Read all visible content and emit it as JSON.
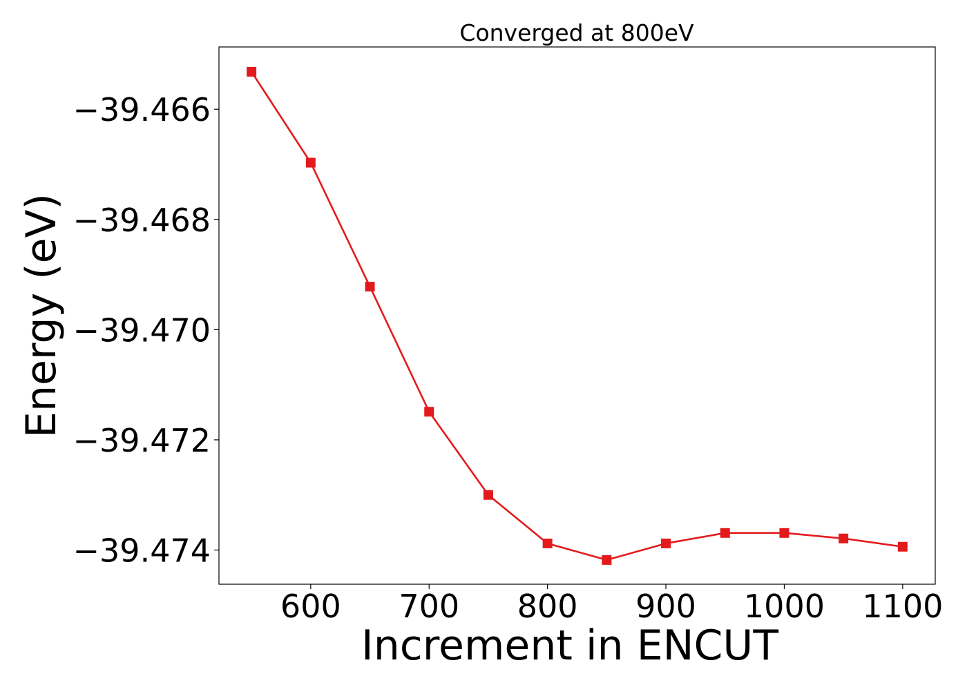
{
  "chart_data": {
    "type": "line",
    "title": "Converged at 800eV",
    "xlabel": "Increment in ENCUT",
    "ylabel": "Energy (eV)",
    "x": [
      550,
      600,
      650,
      700,
      750,
      800,
      850,
      900,
      950,
      1000,
      1050,
      1100
    ],
    "series": [
      {
        "values": [
          -39.46532,
          -39.46697,
          -39.46922,
          -39.47149,
          -39.473,
          -39.47388,
          -39.47418,
          -39.47388,
          -39.47369,
          -39.47369,
          -39.47379,
          -39.47394
        ],
        "color": "#e31a1c",
        "marker": "square"
      }
    ],
    "xlim": [
      522.5,
      1127.5
    ],
    "ylim": [
      -39.47462,
      -39.46487
    ],
    "xticks": [
      600,
      700,
      800,
      900,
      1000,
      1100
    ],
    "xtick_labels": [
      "600",
      "700",
      "800",
      "900",
      "1000",
      "1100"
    ],
    "yticks": [
      -39.466,
      -39.468,
      -39.47,
      -39.472,
      -39.474
    ],
    "ytick_labels": [
      "−39.466",
      "−39.468",
      "−39.470",
      "−39.472",
      "−39.474"
    ],
    "grid": false,
    "legend": false
  }
}
